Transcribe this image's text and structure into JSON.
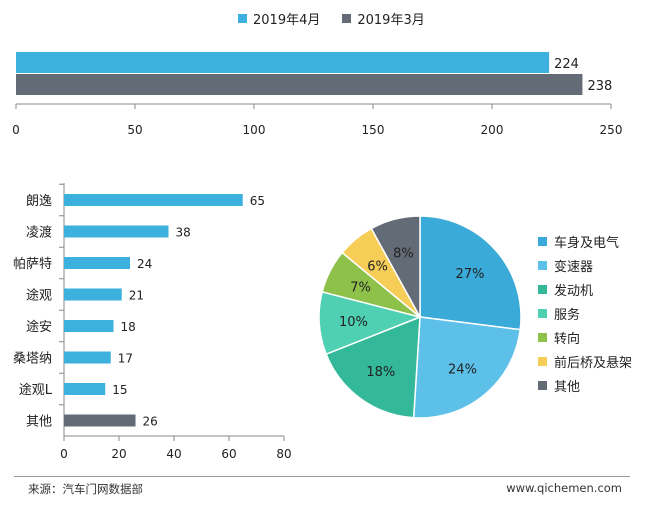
{
  "chart_data": [
    {
      "type": "bar",
      "orientation": "horizontal",
      "series": [
        {
          "name": "2019年4月",
          "values": [
            224
          ],
          "color": "#3CB1DD"
        },
        {
          "name": "2019年3月",
          "values": [
            238
          ],
          "color": "#636B76"
        }
      ],
      "xlim": [
        0,
        250
      ],
      "xticks": [
        0,
        50,
        100,
        150,
        200,
        250
      ],
      "legend": "top-center"
    },
    {
      "type": "bar",
      "orientation": "horizontal",
      "categories": [
        "朗逸",
        "凌渡",
        "帕萨特",
        "途观",
        "途安",
        "桑塔纳",
        "途观L",
        "其他"
      ],
      "values": [
        65,
        38,
        24,
        21,
        18,
        17,
        15,
        26
      ],
      "colors": [
        "#3CB1DD",
        "#3CB1DD",
        "#3CB1DD",
        "#3CB1DD",
        "#3CB1DD",
        "#3CB1DD",
        "#3CB1DD",
        "#636B76"
      ],
      "xlim": [
        0,
        80
      ],
      "xticks": [
        0,
        20,
        40,
        60,
        80
      ]
    },
    {
      "type": "pie",
      "categories": [
        "车身及电气",
        "变速器",
        "发动机",
        "服务",
        "转向",
        "前后桥及悬架",
        "其他"
      ],
      "values": [
        27,
        24,
        18,
        10,
        7,
        6,
        8
      ],
      "labels": [
        "27%",
        "24%",
        "18%",
        "10%",
        "7%",
        "6%",
        "8%"
      ],
      "colors": [
        "#3AAAD9",
        "#5CC0E9",
        "#33B99A",
        "#4FD0B2",
        "#8DC14A",
        "#F6CD56",
        "#636B76"
      ],
      "legend": "right"
    }
  ],
  "footer": {
    "source": "来源：汽车门网数据部",
    "website": "www.qichemen.com"
  }
}
